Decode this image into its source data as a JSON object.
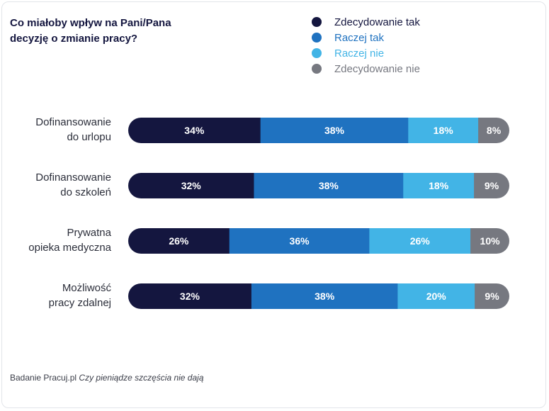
{
  "title_lines": [
    "Co miałoby wpływ na Pani/Pana",
    "decyzję o zmianie pracy?"
  ],
  "footer": {
    "source": "Badanie Pracuj.pl",
    "report": "Czy pieniądze szczęścia nie dają"
  },
  "colors": {
    "title": "#14163f",
    "category_label": "#2b2e3a"
  },
  "chart_data": {
    "type": "bar",
    "orientation": "horizontal",
    "stacked": true,
    "value_format": "percent",
    "xlim": [
      0,
      100
    ],
    "grid": false,
    "legend_position": "top-right",
    "categories": [
      [
        "Dofinansowanie",
        "do urlopu"
      ],
      [
        "Dofinansowanie",
        "do szkoleń"
      ],
      [
        "Prywatna",
        "opieka medyczna"
      ],
      [
        "Możliwość",
        "pracy zdalnej"
      ]
    ],
    "series": [
      {
        "name": "Zdecydowanie tak",
        "color": "#14163f",
        "label_color": "#14163f",
        "values": [
          34,
          32,
          26,
          32
        ]
      },
      {
        "name": "Raczej tak",
        "color": "#1f72c0",
        "label_color": "#1f72c0",
        "values": [
          38,
          38,
          36,
          38
        ]
      },
      {
        "name": "Raczej nie",
        "color": "#42b4e6",
        "label_color": "#42b4e6",
        "values": [
          18,
          18,
          26,
          20
        ]
      },
      {
        "name": "Zdecydowanie nie",
        "color": "#767880",
        "label_color": "#767880",
        "values": [
          8,
          9,
          10,
          9
        ]
      }
    ]
  }
}
